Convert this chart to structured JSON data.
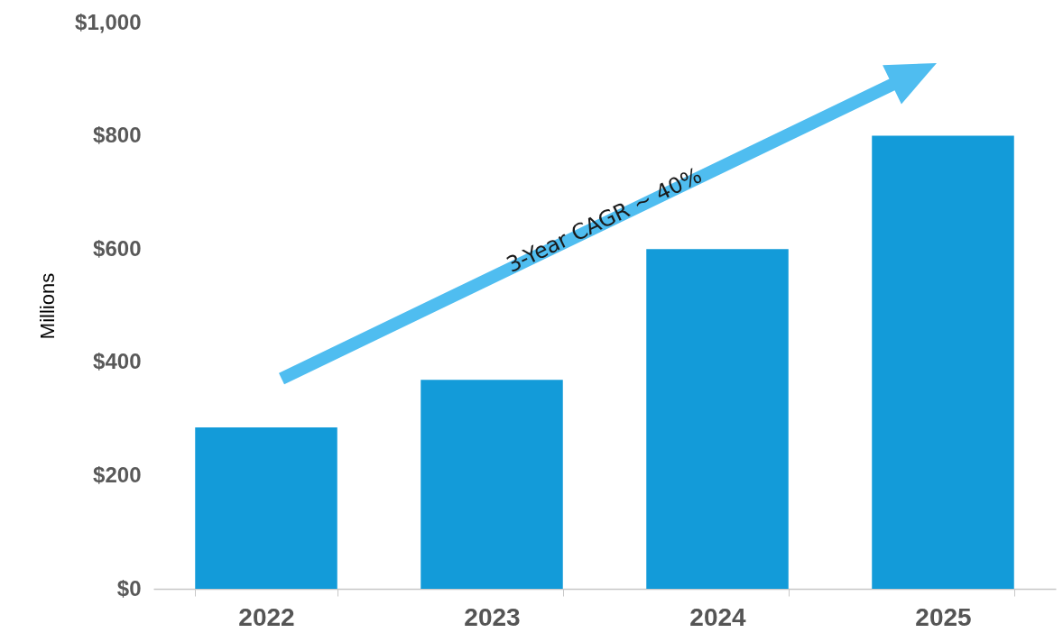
{
  "chart_data": {
    "type": "bar",
    "ylabel": "Millions",
    "categories": [
      "2022",
      "2023",
      "2024",
      "2025"
    ],
    "values": [
      285,
      369,
      600,
      800
    ],
    "color": "#139bd9",
    "ylim": [
      0,
      1000
    ],
    "yticks": [
      {
        "value": 0,
        "label": "$0"
      },
      {
        "value": 200,
        "label": "$200"
      },
      {
        "value": 400,
        "label": "$400"
      },
      {
        "value": 600,
        "label": "$600"
      },
      {
        "value": 800,
        "label": "$800"
      },
      {
        "value": 1000,
        "label": "$1,000"
      }
    ],
    "annotations": [
      "3-Year CAGR ~ 40%"
    ],
    "grid": false
  }
}
